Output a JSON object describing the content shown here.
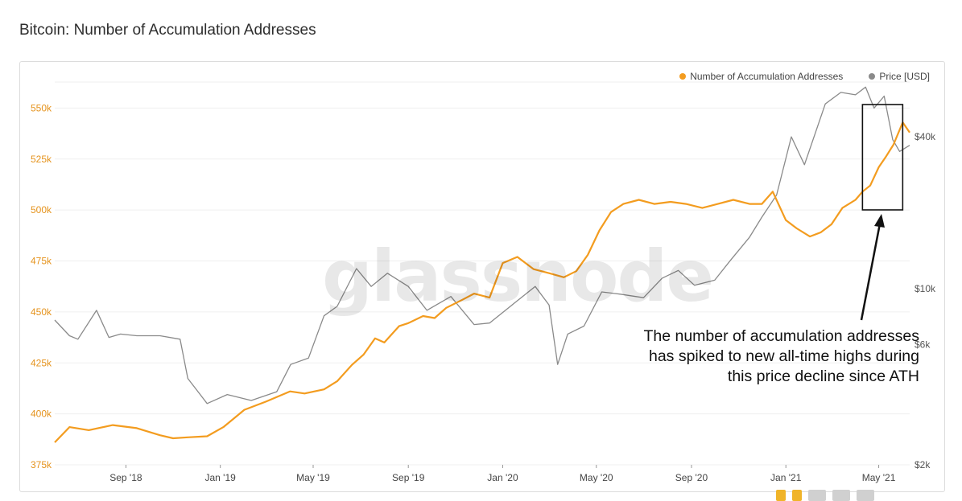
{
  "title": "Bitcoin: Number of Accumulation Addresses",
  "legend": [
    {
      "label": "Number of Accumulation Addresses",
      "color": "#f39c1f"
    },
    {
      "label": "Price [USD]",
      "color": "#8a8a8a"
    }
  ],
  "watermark": "glassnode",
  "annotation": {
    "lines": [
      "The number of accumulation addresses",
      "has spiked to new all-time highs during",
      "this price decline since ATH"
    ]
  },
  "chart_data": {
    "type": "line",
    "title": "Bitcoin: Number of Accumulation Addresses",
    "x_ticks": [
      "Sep '18",
      "Jan '19",
      "May '19",
      "Sep '19",
      "Jan '20",
      "May '20",
      "Sep '20",
      "Jan '21",
      "May '21"
    ],
    "x_range": [
      "2018-06-01",
      "2021-06-10"
    ],
    "y_left": {
      "ticks": [
        "375k",
        "400k",
        "425k",
        "450k",
        "475k",
        "500k",
        "525k",
        "550k"
      ],
      "range": [
        375000,
        562000
      ],
      "scale": "linear"
    },
    "y_right": {
      "ticks": [
        "$2k",
        "$6k",
        "$10k",
        "$40k"
      ],
      "range": [
        2000,
        65000
      ],
      "scale": "log"
    },
    "grid": "horizontal",
    "legend_position": "top-right",
    "series": [
      {
        "name": "Number of Accumulation Addresses",
        "axis": "left",
        "color": "#f39c1f",
        "x": [
          "2018-06-01",
          "2018-06-20",
          "2018-07-15",
          "2018-08-15",
          "2018-09-15",
          "2018-10-15",
          "2018-11-01",
          "2018-11-20",
          "2018-12-15",
          "2019-01-05",
          "2019-02-01",
          "2019-03-01",
          "2019-04-01",
          "2019-04-20",
          "2019-05-15",
          "2019-06-01",
          "2019-06-20",
          "2019-07-05",
          "2019-07-20",
          "2019-08-01",
          "2019-08-20",
          "2019-09-01",
          "2019-09-20",
          "2019-10-05",
          "2019-10-20",
          "2019-11-10",
          "2019-11-25",
          "2019-12-15",
          "2020-01-01",
          "2020-01-20",
          "2020-02-10",
          "2020-03-01",
          "2020-03-20",
          "2020-04-05",
          "2020-04-20",
          "2020-05-05",
          "2020-05-20",
          "2020-06-05",
          "2020-06-25",
          "2020-07-15",
          "2020-08-05",
          "2020-08-25",
          "2020-09-15",
          "2020-10-05",
          "2020-10-25",
          "2020-11-15",
          "2020-12-01",
          "2020-12-15",
          "2021-01-01",
          "2021-01-15",
          "2021-02-01",
          "2021-02-15",
          "2021-03-01",
          "2021-03-15",
          "2021-04-01",
          "2021-04-10",
          "2021-04-20",
          "2021-05-01",
          "2021-05-10",
          "2021-05-20",
          "2021-06-01",
          "2021-06-10"
        ],
        "values": [
          386000,
          393500,
          392000,
          394500,
          393000,
          389500,
          388000,
          388500,
          389000,
          393500,
          402000,
          406000,
          411000,
          410000,
          412000,
          416000,
          424000,
          429000,
          437000,
          435000,
          443000,
          444500,
          448000,
          447000,
          452000,
          456000,
          459000,
          457000,
          474000,
          477000,
          471000,
          469000,
          467000,
          470000,
          478000,
          490000,
          499000,
          503000,
          505000,
          503000,
          504000,
          503000,
          501000,
          503000,
          505000,
          503000,
          503000,
          509000,
          495000,
          491000,
          487000,
          489000,
          493000,
          501000,
          505000,
          509000,
          512000,
          521000,
          526000,
          532000,
          543000,
          538000
        ]
      },
      {
        "name": "Price [USD]",
        "axis": "right",
        "color": "#8a8a8a",
        "x": [
          "2018-06-01",
          "2018-06-20",
          "2018-07-01",
          "2018-07-25",
          "2018-08-10",
          "2018-08-25",
          "2018-09-15",
          "2018-10-15",
          "2018-11-10",
          "2018-11-20",
          "2018-12-15",
          "2019-01-10",
          "2019-02-10",
          "2019-03-15",
          "2019-04-02",
          "2019-04-25",
          "2019-05-15",
          "2019-06-01",
          "2019-06-26",
          "2019-07-15",
          "2019-08-05",
          "2019-09-01",
          "2019-09-25",
          "2019-10-26",
          "2019-11-25",
          "2019-12-15",
          "2020-01-15",
          "2020-02-12",
          "2020-03-01",
          "2020-03-12",
          "2020-03-25",
          "2020-04-15",
          "2020-05-08",
          "2020-06-01",
          "2020-07-01",
          "2020-07-25",
          "2020-08-15",
          "2020-09-05",
          "2020-10-01",
          "2020-10-21",
          "2020-11-15",
          "2020-12-01",
          "2020-12-20",
          "2021-01-08",
          "2021-01-25",
          "2021-02-21",
          "2021-03-13",
          "2021-04-01",
          "2021-04-14",
          "2021-04-25",
          "2021-05-08",
          "2021-05-19",
          "2021-05-28",
          "2021-06-10"
        ],
        "values": [
          7500,
          6500,
          6300,
          8200,
          6400,
          6600,
          6500,
          6500,
          6300,
          4400,
          3500,
          3800,
          3600,
          3900,
          5000,
          5300,
          7800,
          8500,
          12000,
          10200,
          11500,
          10200,
          8200,
          9300,
          7200,
          7300,
          8700,
          10200,
          8600,
          5000,
          6600,
          7100,
          9700,
          9500,
          9200,
          11000,
          11800,
          10300,
          10800,
          12900,
          16000,
          19200,
          23500,
          40000,
          31000,
          54000,
          60000,
          58700,
          63000,
          52000,
          58000,
          39000,
          35000,
          37000
        ]
      }
    ]
  }
}
